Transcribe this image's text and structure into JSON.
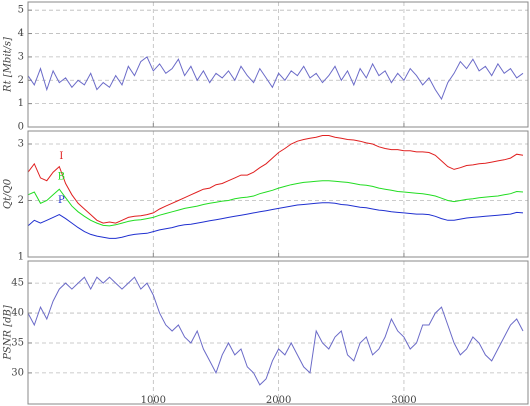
{
  "chart_data": [
    {
      "type": "line",
      "ylabel": "Rt [Mbit/s]",
      "x": [
        0,
        50,
        100,
        150,
        200,
        250,
        300,
        350,
        400,
        450,
        500,
        550,
        600,
        650,
        700,
        750,
        800,
        850,
        900,
        950,
        1000,
        1050,
        1100,
        1150,
        1200,
        1250,
        1300,
        1350,
        1400,
        1450,
        1500,
        1550,
        1600,
        1650,
        1700,
        1750,
        1800,
        1850,
        1900,
        1950,
        2000,
        2050,
        2100,
        2150,
        2200,
        2250,
        2300,
        2350,
        2400,
        2450,
        2500,
        2550,
        2600,
        2650,
        2700,
        2750,
        2800,
        2850,
        2900,
        2950,
        3000,
        3050,
        3100,
        3150,
        3200,
        3250,
        3300,
        3350,
        3400,
        3450,
        3500,
        3550,
        3600,
        3650,
        3700,
        3750,
        3800,
        3850,
        3900,
        3950
      ],
      "series": [
        {
          "color": "#6b6bc8",
          "values": [
            2.2,
            1.8,
            2.5,
            1.6,
            2.4,
            1.9,
            2.1,
            1.7,
            2.0,
            1.8,
            2.3,
            1.6,
            1.9,
            1.7,
            2.2,
            1.8,
            2.6,
            2.2,
            2.8,
            3.0,
            2.4,
            2.7,
            2.3,
            2.5,
            2.9,
            2.2,
            2.6,
            2.0,
            2.4,
            1.9,
            2.3,
            2.1,
            2.4,
            2.0,
            2.6,
            2.2,
            1.9,
            2.5,
            2.1,
            1.7,
            2.3,
            2.0,
            2.4,
            2.2,
            2.6,
            2.1,
            2.3,
            1.9,
            2.2,
            2.6,
            2.0,
            2.4,
            1.8,
            2.5,
            2.1,
            2.7,
            2.2,
            2.4,
            1.9,
            2.3,
            2.0,
            2.5,
            2.2,
            1.8,
            2.1,
            1.6,
            1.2,
            1.9,
            2.3,
            2.8,
            2.5,
            2.9,
            2.4,
            2.6,
            2.2,
            2.7,
            2.3,
            2.5,
            2.1,
            2.3
          ]
        }
      ],
      "xlim": [
        0,
        3990
      ],
      "xticks": [
        1000,
        2000,
        3000
      ],
      "ylim": [
        0,
        5.35
      ],
      "yticks": [
        0,
        1,
        2,
        3,
        4,
        5
      ],
      "grid": true
    },
    {
      "type": "line",
      "ylabel": "Qt/Q0",
      "x": [
        0,
        50,
        100,
        150,
        200,
        250,
        300,
        350,
        400,
        450,
        500,
        550,
        600,
        650,
        700,
        750,
        800,
        850,
        900,
        950,
        1000,
        1050,
        1100,
        1150,
        1200,
        1250,
        1300,
        1350,
        1400,
        1450,
        1500,
        1550,
        1600,
        1650,
        1700,
        1750,
        1800,
        1850,
        1900,
        1950,
        2000,
        2050,
        2100,
        2150,
        2200,
        2250,
        2300,
        2350,
        2400,
        2450,
        2500,
        2550,
        2600,
        2650,
        2700,
        2750,
        2800,
        2850,
        2900,
        2950,
        3000,
        3050,
        3100,
        3150,
        3200,
        3250,
        3300,
        3350,
        3400,
        3450,
        3500,
        3550,
        3600,
        3650,
        3700,
        3750,
        3800,
        3850,
        3900,
        3950
      ],
      "series": [
        {
          "name": "I",
          "color": "#e02020",
          "values": [
            2.5,
            2.65,
            2.4,
            2.35,
            2.5,
            2.6,
            2.3,
            2.1,
            1.95,
            1.85,
            1.75,
            1.65,
            1.6,
            1.62,
            1.6,
            1.65,
            1.7,
            1.72,
            1.73,
            1.75,
            1.78,
            1.85,
            1.9,
            1.95,
            2.0,
            2.05,
            2.1,
            2.15,
            2.2,
            2.22,
            2.28,
            2.3,
            2.35,
            2.4,
            2.45,
            2.45,
            2.5,
            2.58,
            2.65,
            2.75,
            2.85,
            2.92,
            3.0,
            3.05,
            3.08,
            3.1,
            3.12,
            3.15,
            3.15,
            3.12,
            3.1,
            3.08,
            3.07,
            3.05,
            3.02,
            3.0,
            2.95,
            2.92,
            2.9,
            2.9,
            2.88,
            2.88,
            2.86,
            2.86,
            2.85,
            2.8,
            2.7,
            2.6,
            2.55,
            2.58,
            2.62,
            2.63,
            2.65,
            2.66,
            2.68,
            2.7,
            2.72,
            2.75,
            2.82,
            2.8
          ]
        },
        {
          "name": "B",
          "color": "#22dd22",
          "values": [
            2.1,
            2.15,
            1.95,
            2.0,
            2.1,
            2.2,
            2.05,
            1.9,
            1.8,
            1.72,
            1.65,
            1.6,
            1.56,
            1.55,
            1.57,
            1.6,
            1.63,
            1.65,
            1.66,
            1.68,
            1.7,
            1.74,
            1.77,
            1.8,
            1.83,
            1.86,
            1.88,
            1.9,
            1.93,
            1.95,
            1.97,
            1.99,
            2.0,
            2.03,
            2.05,
            2.06,
            2.08,
            2.12,
            2.15,
            2.18,
            2.22,
            2.25,
            2.28,
            2.3,
            2.32,
            2.33,
            2.34,
            2.35,
            2.35,
            2.34,
            2.33,
            2.32,
            2.3,
            2.28,
            2.27,
            2.25,
            2.22,
            2.2,
            2.18,
            2.16,
            2.15,
            2.14,
            2.13,
            2.12,
            2.1,
            2.08,
            2.04,
            2.0,
            1.98,
            2.0,
            2.02,
            2.03,
            2.05,
            2.06,
            2.07,
            2.08,
            2.1,
            2.12,
            2.16,
            2.15
          ]
        },
        {
          "name": "P",
          "color": "#2030d0",
          "values": [
            1.55,
            1.65,
            1.6,
            1.65,
            1.7,
            1.75,
            1.68,
            1.6,
            1.52,
            1.45,
            1.4,
            1.37,
            1.35,
            1.33,
            1.33,
            1.35,
            1.38,
            1.4,
            1.41,
            1.42,
            1.45,
            1.48,
            1.5,
            1.52,
            1.55,
            1.57,
            1.58,
            1.6,
            1.62,
            1.64,
            1.66,
            1.68,
            1.7,
            1.72,
            1.74,
            1.76,
            1.78,
            1.8,
            1.82,
            1.84,
            1.86,
            1.88,
            1.9,
            1.92,
            1.93,
            1.94,
            1.95,
            1.96,
            1.96,
            1.95,
            1.93,
            1.92,
            1.9,
            1.88,
            1.87,
            1.85,
            1.83,
            1.82,
            1.8,
            1.79,
            1.78,
            1.77,
            1.76,
            1.76,
            1.75,
            1.72,
            1.68,
            1.65,
            1.65,
            1.67,
            1.69,
            1.7,
            1.71,
            1.72,
            1.73,
            1.74,
            1.75,
            1.76,
            1.79,
            1.78
          ]
        }
      ],
      "xlim": [
        0,
        3990
      ],
      "xticks": [
        1000,
        2000,
        3000
      ],
      "ylim": [
        1,
        3.23
      ],
      "yticks": [
        1,
        2,
        3
      ],
      "grid": true
    },
    {
      "type": "line",
      "ylabel": "PSNR [dB]",
      "x": [
        0,
        50,
        100,
        150,
        200,
        250,
        300,
        350,
        400,
        450,
        500,
        550,
        600,
        650,
        700,
        750,
        800,
        850,
        900,
        950,
        1000,
        1050,
        1100,
        1150,
        1200,
        1250,
        1300,
        1350,
        1400,
        1450,
        1500,
        1550,
        1600,
        1650,
        1700,
        1750,
        1800,
        1850,
        1900,
        1950,
        2000,
        2050,
        2100,
        2150,
        2200,
        2250,
        2300,
        2350,
        2400,
        2450,
        2500,
        2550,
        2600,
        2650,
        2700,
        2750,
        2800,
        2850,
        2900,
        2950,
        3000,
        3050,
        3100,
        3150,
        3200,
        3250,
        3300,
        3350,
        3400,
        3450,
        3500,
        3550,
        3600,
        3650,
        3700,
        3750,
        3800,
        3850,
        3900,
        3950
      ],
      "series": [
        {
          "color": "#6b6bc8",
          "values": [
            40,
            38,
            41,
            39,
            42,
            44,
            45,
            44,
            45,
            46,
            44,
            46,
            45,
            46,
            45,
            44,
            45,
            46,
            44,
            45,
            43,
            40,
            38,
            37,
            38,
            36,
            35,
            37,
            34,
            32,
            30,
            33,
            35,
            33,
            34,
            31,
            30,
            28,
            29,
            32,
            34,
            33,
            35,
            33,
            31,
            30,
            37,
            35,
            34,
            36,
            37,
            33,
            32,
            35,
            36,
            33,
            34,
            36,
            39,
            37,
            36,
            34,
            35,
            38,
            38,
            40,
            41,
            38,
            35,
            33,
            34,
            36,
            35,
            33,
            32,
            34,
            36,
            38,
            39,
            37
          ]
        }
      ],
      "xlim": [
        0,
        3990
      ],
      "xticks": [
        1000,
        2000,
        3000
      ],
      "ylim": [
        24.8,
        48.7
      ],
      "yticks": [
        30,
        35,
        40,
        45
      ],
      "grid": true,
      "xtick_labels": true
    }
  ]
}
